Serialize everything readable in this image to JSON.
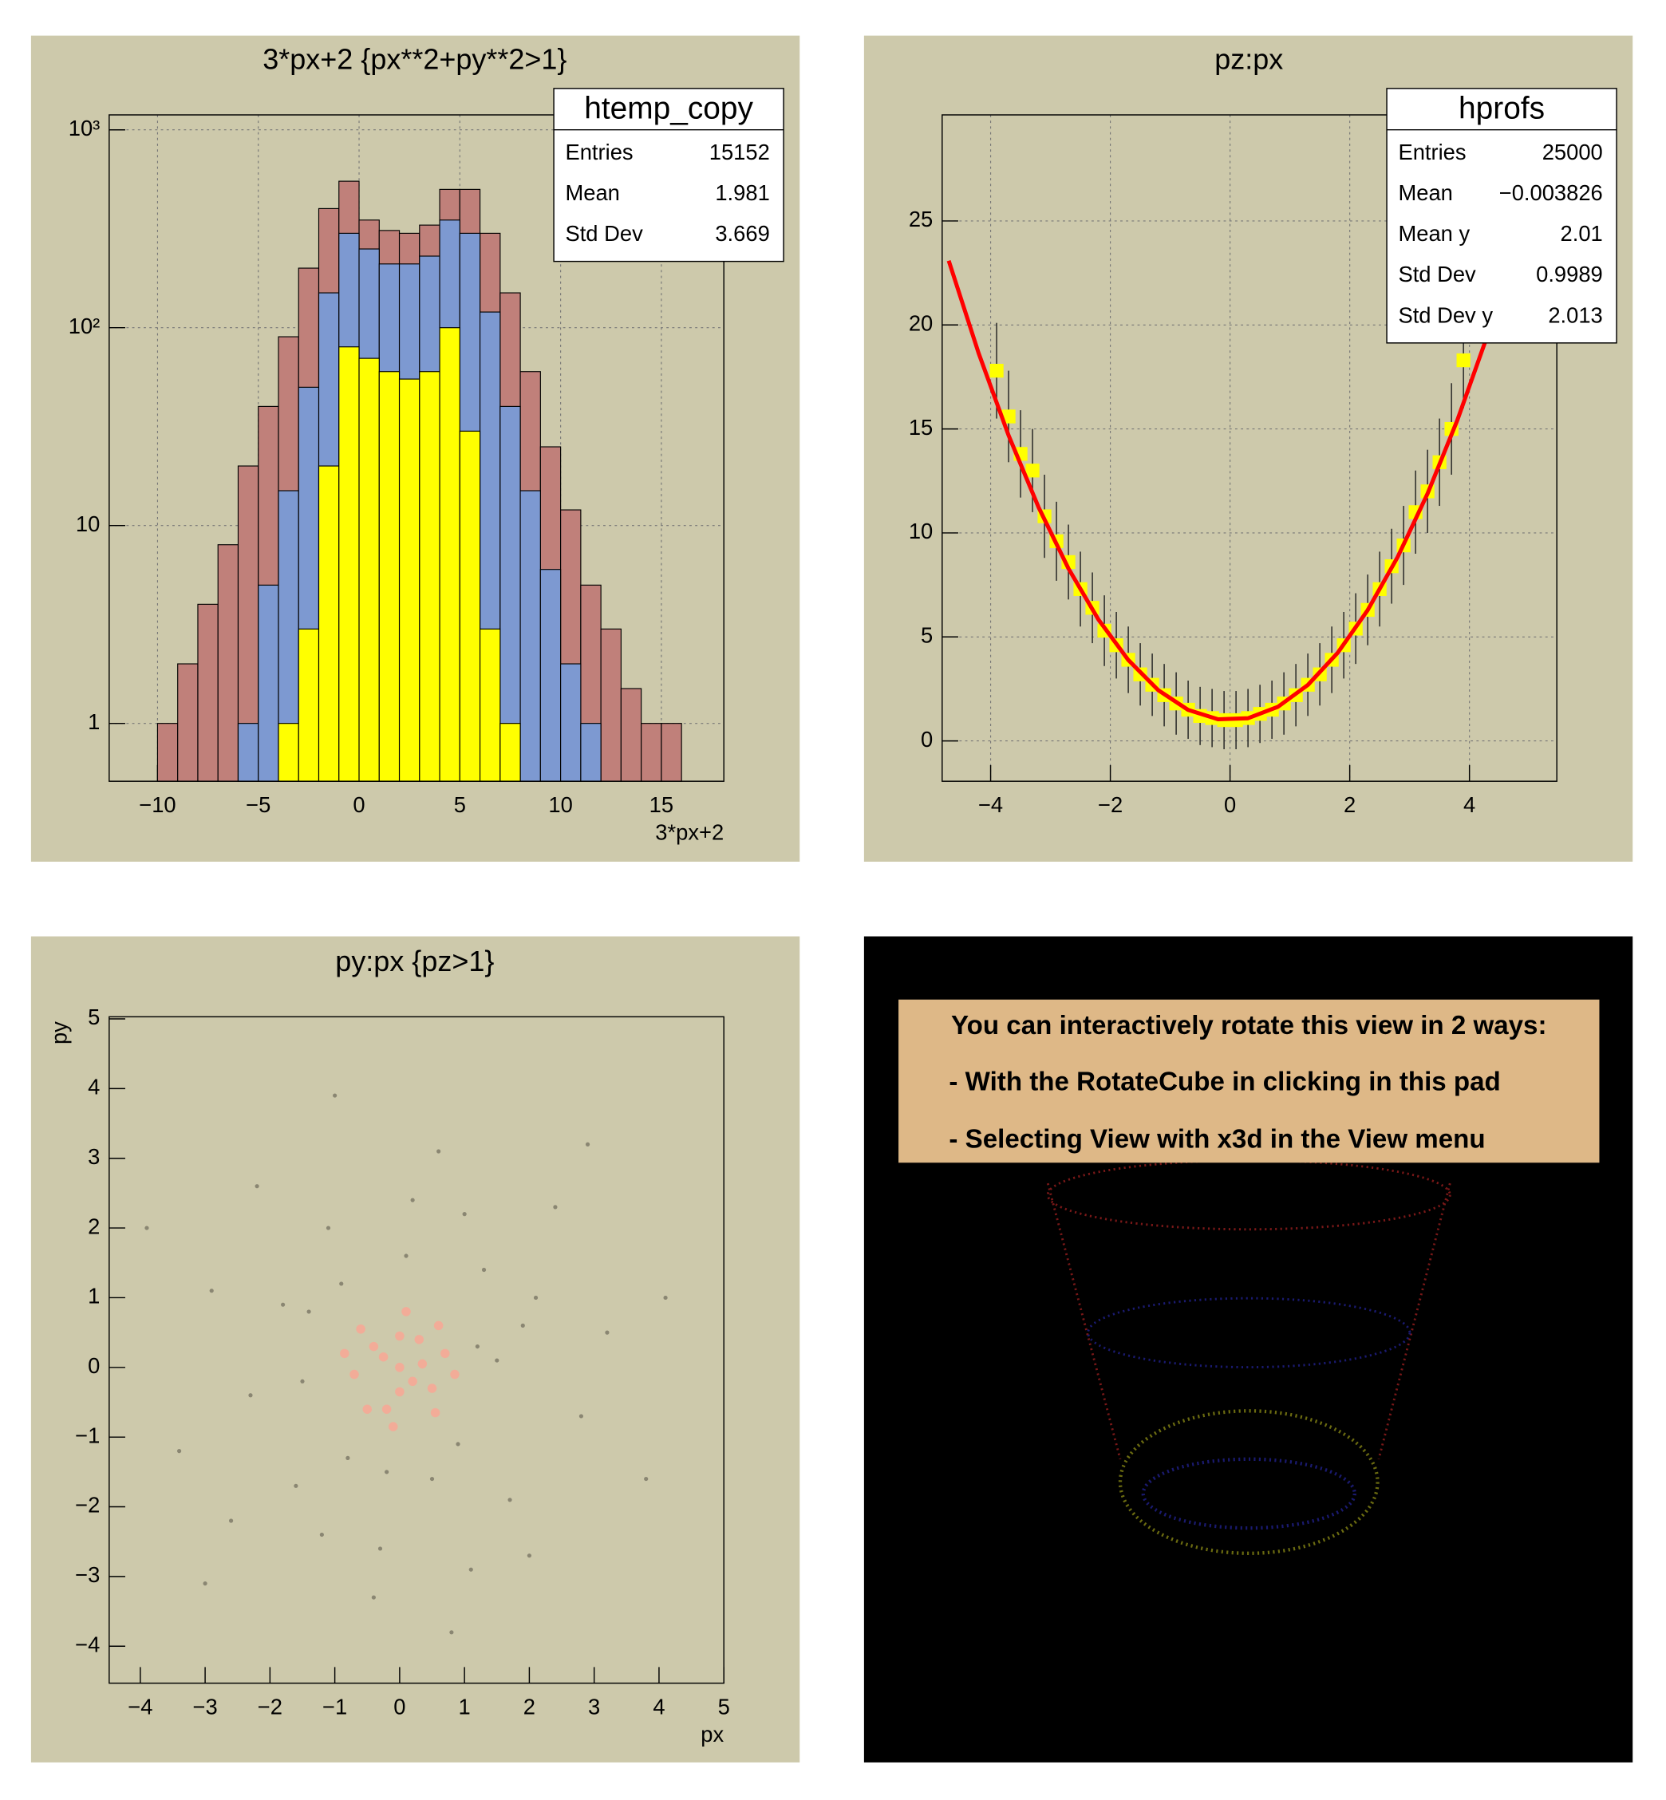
{
  "chart_data": [
    {
      "type": "histogram",
      "title": "3*px+2 {px**2+py**2>1}",
      "x_label": "3*px+2",
      "bins": [
        -10,
        -9,
        -8,
        -7,
        -6,
        -5,
        -4,
        -3,
        -2,
        -1,
        0,
        1,
        2,
        3,
        4,
        5,
        6,
        7,
        8,
        9,
        10,
        11,
        12,
        13,
        14,
        15,
        16
      ],
      "series": [
        {
          "color": "#c0807a",
          "values": [
            1,
            2,
            4,
            8,
            20,
            40,
            90,
            200,
            400,
            550,
            350,
            310,
            300,
            330,
            500,
            500,
            300,
            150,
            60,
            25,
            12,
            5,
            3,
            1.5,
            1,
            1
          ]
        },
        {
          "color": "#7d99d1",
          "values": [
            null,
            null,
            null,
            null,
            1,
            5,
            15,
            50,
            150,
            300,
            250,
            210,
            210,
            230,
            350,
            300,
            120,
            40,
            15,
            6,
            2,
            1,
            null,
            null,
            null,
            null
          ]
        },
        {
          "color": "#ffff00",
          "values": [
            null,
            null,
            null,
            null,
            null,
            null,
            1,
            3,
            20,
            80,
            70,
            60,
            55,
            60,
            100,
            30,
            3,
            1,
            null,
            null,
            null,
            null,
            null,
            null,
            null,
            null
          ]
        }
      ],
      "log_y": true,
      "grid": true,
      "xlim": [
        -12.4,
        18.1
      ],
      "ylim": [
        0.51,
        1190
      ],
      "xticks": [
        {
          "value": -10,
          "label": "−10"
        },
        {
          "value": -5,
          "label": "−5"
        },
        0,
        5,
        10,
        15
      ],
      "yticks": [
        1,
        10,
        {
          "value": 100,
          "label": "10²"
        },
        {
          "value": 1000,
          "label": "10³"
        }
      ],
      "stats": {
        "title": "htemp_copy",
        "rows": [
          {
            "label": "Entries",
            "value": 15152
          },
          {
            "label": "Mean",
            "value": 1.981
          },
          {
            "label": "Std Dev",
            "value": 3.669
          }
        ]
      }
    },
    {
      "type": "profile",
      "title": "pz:px",
      "grid": true,
      "xlim": [
        -4.81,
        5.46
      ],
      "ylim": [
        -1.94,
        30.1
      ],
      "xticks": [
        {
          "value": -4,
          "label": "−4"
        },
        {
          "value": -2,
          "label": "−2"
        },
        0,
        2,
        4
      ],
      "yticks": [
        0,
        5,
        10,
        15,
        20,
        25
      ],
      "series": [
        {
          "color": "#ffff00",
          "x": [
            -3.9,
            -3.7,
            -3.5,
            -3.3,
            -3.1,
            -2.9,
            -2.7,
            -2.5,
            -2.3,
            -2.1,
            -1.9,
            -1.7,
            -1.5,
            -1.3,
            -1.1,
            -0.9,
            -0.7,
            -0.5,
            -0.3,
            -0.1,
            0.1,
            0.3,
            0.5,
            0.7,
            0.9,
            1.1,
            1.3,
            1.5,
            1.7,
            1.9,
            2.1,
            2.3,
            2.5,
            2.7,
            2.9,
            3.1,
            3.3,
            3.5,
            3.7,
            3.9
          ],
          "values": [
            17.8,
            15.6,
            13.8,
            13.0,
            10.8,
            9.6,
            8.6,
            7.3,
            6.4,
            5.3,
            4.6,
            3.9,
            3.2,
            2.7,
            2.2,
            1.8,
            1.5,
            1.2,
            1.1,
            1.0,
            1.0,
            1.1,
            1.3,
            1.5,
            1.8,
            2.2,
            2.7,
            3.2,
            3.9,
            4.6,
            5.4,
            6.3,
            7.3,
            8.4,
            9.4,
            11.0,
            12.0,
            13.4,
            15.0,
            18.3
          ],
          "errors": [
            2.3,
            2.2,
            2.1,
            2.0,
            2.0,
            1.9,
            1.8,
            1.8,
            1.7,
            1.7,
            1.6,
            1.6,
            1.5,
            1.5,
            1.5,
            1.5,
            1.4,
            1.4,
            1.4,
            1.4,
            1.4,
            1.4,
            1.4,
            1.4,
            1.5,
            1.5,
            1.5,
            1.5,
            1.6,
            1.6,
            1.7,
            1.7,
            1.8,
            1.8,
            1.9,
            2.0,
            2.0,
            2.1,
            2.2,
            2.3
          ]
        }
      ],
      "fit": {
        "color": "#ff0000",
        "x": [
          -4.7,
          -4.2,
          -3.7,
          -3.2,
          -2.7,
          -2.2,
          -1.7,
          -1.2,
          -0.7,
          -0.2,
          0.3,
          0.8,
          1.3,
          1.8,
          2.3,
          2.8,
          3.3,
          3.8,
          4.3
        ],
        "values": [
          23.09,
          18.64,
          14.69,
          11.24,
          8.29,
          5.84,
          3.89,
          2.44,
          1.49,
          1.04,
          1.09,
          1.64,
          2.69,
          4.24,
          6.29,
          8.84,
          11.89,
          15.44,
          19.49
        ]
      },
      "stats": {
        "title": "hprofs",
        "rows": [
          {
            "label": "Entries",
            "value": 25000
          },
          {
            "label": "Mean",
            "value": "−0.003826"
          },
          {
            "label": "Mean y",
            "value": 2.01
          },
          {
            "label": "Std Dev",
            "value": 0.9989
          },
          {
            "label": "Std Dev y",
            "value": 2.013
          }
        ]
      }
    },
    {
      "type": "scatter",
      "title": "py:px {pz>1}",
      "x_label": "px",
      "y_label": "py",
      "xlim": [
        -4.48,
        5
      ],
      "ylim": [
        -4.53,
        5.03
      ],
      "xticks": [
        {
          "value": -4,
          "label": "−4"
        },
        {
          "value": -3,
          "label": "−3"
        },
        {
          "value": -2,
          "label": "−2"
        },
        {
          "value": -1,
          "label": "−1"
        },
        0,
        1,
        2,
        3,
        4,
        5
      ],
      "yticks": [
        {
          "value": -4,
          "label": "−4"
        },
        {
          "value": -3,
          "label": "−3"
        },
        {
          "value": -2,
          "label": "−2"
        },
        {
          "value": -1,
          "label": "−1"
        },
        0,
        1,
        2,
        3,
        4,
        5
      ],
      "series": [
        {
          "color": "#8a8672",
          "x": [
            1.2,
            -1.4,
            0.5,
            -0.8,
            2.1,
            -2.3,
            1.7,
            -1.1,
            0.2,
            -0.3,
            2.8,
            -2.9,
            1.3,
            -1.6,
            0.9,
            -0.9,
            3.2,
            -3.4,
            0.6,
            -0.4,
            2.4,
            -2.2,
            2.0,
            -2.6,
            1.5,
            -1.5,
            0.1,
            -0.2,
            1.9,
            -1.8,
            1.0,
            -1.2,
            3.8,
            -3.9,
            2.9,
            -1.0,
            0.8,
            4.1,
            -3.0,
            1.1
          ],
          "values": [
            0.3,
            0.8,
            -1.6,
            -1.3,
            1.0,
            -0.4,
            -1.9,
            2.0,
            2.4,
            -2.6,
            -0.7,
            1.1,
            1.4,
            -1.7,
            -1.1,
            1.2,
            0.5,
            -1.2,
            3.1,
            -3.3,
            2.3,
            2.6,
            -2.7,
            -2.2,
            0.1,
            -0.2,
            1.6,
            -1.5,
            0.6,
            0.9,
            2.2,
            -2.4,
            -1.6,
            2.0,
            3.2,
            3.9,
            -3.8,
            1.0,
            -3.1,
            -2.9
          ]
        },
        {
          "color": "#f2ac98",
          "x": [
            0,
            0.3,
            -0.4,
            0.5,
            -0.2,
            0.7,
            -0.7,
            0.1,
            -0.1,
            0.6,
            -0.6,
            0.55,
            -0.5,
            0.85,
            -0.85,
            0.2,
            -0.25,
            0.35,
            0.0,
            0.0
          ],
          "values": [
            0,
            0.4,
            0.3,
            -0.3,
            -0.6,
            0.2,
            -0.1,
            0.8,
            -0.85,
            0.6,
            0.55,
            -0.65,
            -0.6,
            -0.1,
            0.2,
            -0.2,
            0.15,
            0.05,
            0.45,
            -0.35
          ]
        }
      ]
    }
  ],
  "panel_text": {
    "lines": [
      "You can interactively rotate this view in 2 ways:",
      "- With the RotateCube in clicking in this pad",
      "- Selecting View with x3d in the View menu"
    ]
  }
}
